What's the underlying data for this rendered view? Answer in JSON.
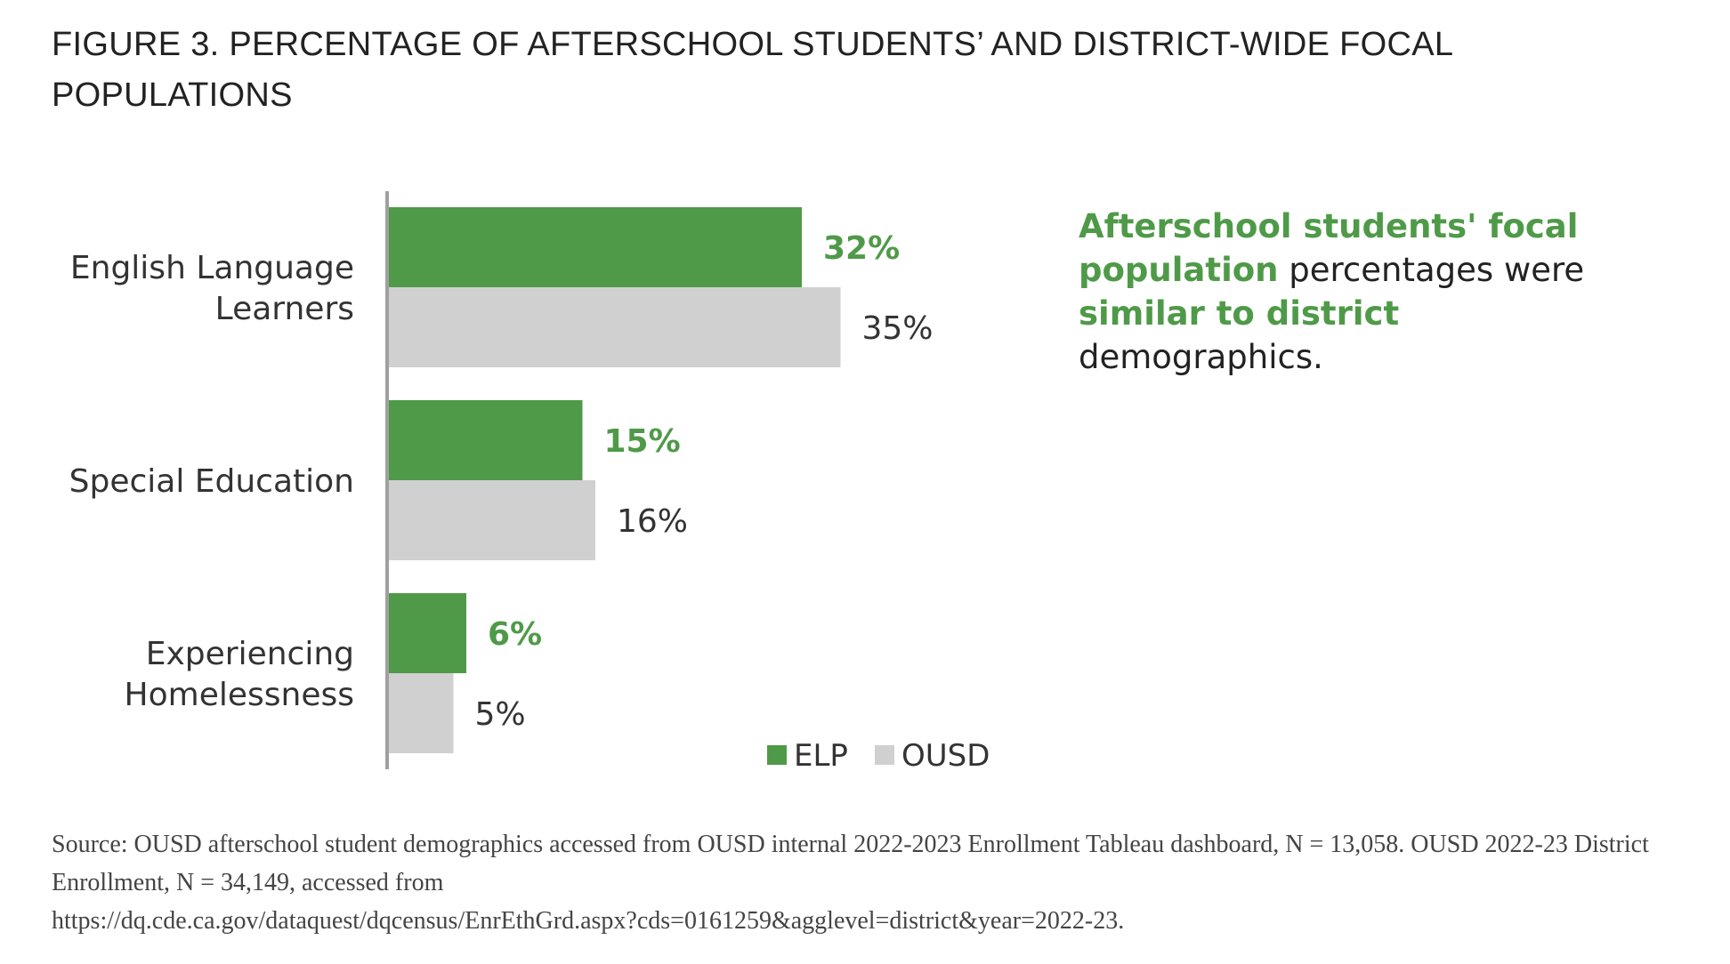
{
  "title": "FIGURE 3. PERCENTAGE OF AFTERSCHOOL STUDENTS’ AND DISTRICT-WIDE FOCAL POPULATIONS",
  "callout": {
    "part1": "Afterschool students' focal population",
    "part2": " percentages were ",
    "part3": "similar to district",
    "part4": " demographics."
  },
  "source": {
    "line1": "Source: OUSD afterschool student demographics accessed from OUSD internal 2022-2023 Enrollment Tableau dashboard, N = 13,058. OUSD 2022-23 District Enrollment, N = 34,149, accessed from",
    "line2": "https://dq.cde.ca.gov/dataquest/dqcensus/EnrEthGrd.aspx?cds=0161259&agglevel=district&year=2022-23."
  },
  "colors": {
    "elp": "#4f9a48",
    "ousd": "#d0d0d0",
    "axis": "#a0a0a0"
  },
  "chart_data": {
    "type": "bar",
    "orientation": "horizontal",
    "categories": [
      [
        "English Language",
        "Learners"
      ],
      [
        "Special Education"
      ],
      [
        "Experiencing",
        "Homelessness"
      ]
    ],
    "series": [
      {
        "name": "ELP",
        "values": [
          32,
          15,
          6
        ],
        "labels": [
          "32%",
          "15%",
          "6%"
        ]
      },
      {
        "name": "OUSD",
        "values": [
          35,
          16,
          5
        ],
        "labels": [
          "35%",
          "16%",
          "5%"
        ]
      }
    ],
    "xlim": [
      0,
      100
    ],
    "grid": false,
    "legend": "bottom-right"
  }
}
